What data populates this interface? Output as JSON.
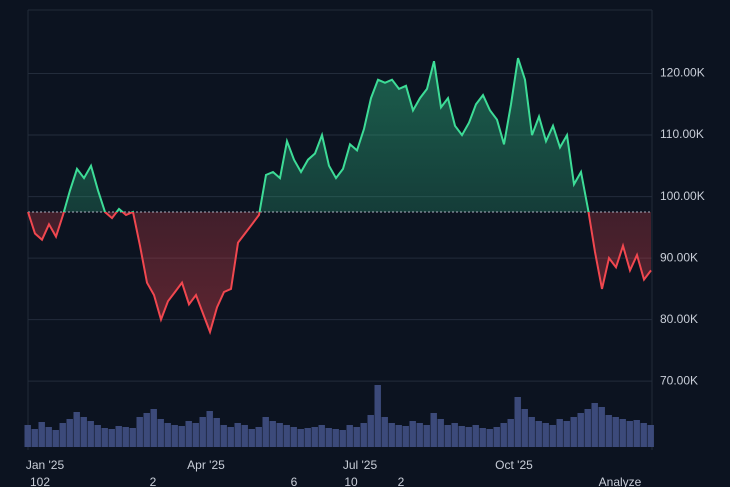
{
  "chart_data": {
    "type": "line",
    "categories": [
      null,
      null,
      "Jan '25",
      null,
      null,
      null,
      null,
      null,
      null,
      null,
      null,
      null,
      null,
      null,
      null,
      null,
      null,
      null,
      null,
      null,
      null,
      null,
      null,
      null,
      null,
      "Apr '25",
      null,
      null,
      null,
      null,
      null,
      null,
      null,
      null,
      null,
      null,
      null,
      null,
      null,
      null,
      null,
      null,
      null,
      null,
      null,
      null,
      null,
      "Jul '25",
      null,
      null,
      null,
      null,
      null,
      null,
      null,
      null,
      null,
      null,
      null,
      null,
      null,
      null,
      null,
      null,
      null,
      null,
      null,
      null,
      null,
      "Oct '25",
      null,
      null,
      null,
      null,
      null,
      null,
      null,
      null,
      null,
      null,
      null,
      null,
      null,
      null,
      null,
      null,
      null,
      null,
      null,
      null
    ],
    "series": [
      {
        "values": [
          97500,
          94000,
          93000,
          95500,
          93500,
          97000,
          101000,
          104500,
          103000,
          105000,
          101000,
          97500,
          96500,
          98000,
          97000,
          97500,
          92000,
          86000,
          84000,
          80000,
          83000,
          84500,
          86000,
          82500,
          84000,
          81000,
          78000,
          82000,
          84500,
          85000,
          92500,
          94000,
          95500,
          97000,
          103500,
          104000,
          103000,
          109000,
          106000,
          104000,
          106000,
          107000,
          110000,
          105000,
          103000,
          104500,
          108500,
          107500,
          111000,
          116000,
          119000,
          118500,
          119000,
          117500,
          118000,
          114000,
          116000,
          117500,
          122000,
          114500,
          116000,
          111500,
          110000,
          112000,
          115000,
          116500,
          114000,
          112500,
          108500,
          115000,
          122500,
          119000,
          110000,
          113000,
          109000,
          111500,
          108000,
          110000,
          102000,
          104000,
          98000,
          91000,
          85000,
          90000,
          88500,
          92000,
          88000,
          90500,
          86500,
          88000
        ],
        "up_color": "#3ddc97",
        "down_color": "#f0474f"
      },
      {
        "type": "bar",
        "color": "#3c4a7a",
        "values": [
          22,
          18,
          25,
          20,
          17,
          24,
          28,
          35,
          30,
          26,
          22,
          19,
          18,
          21,
          20,
          19,
          30,
          34,
          38,
          28,
          24,
          22,
          21,
          26,
          24,
          30,
          36,
          29,
          22,
          20,
          24,
          22,
          18,
          20,
          30,
          26,
          24,
          22,
          20,
          18,
          19,
          20,
          22,
          19,
          18,
          17,
          22,
          20,
          24,
          32,
          62,
          30,
          24,
          22,
          21,
          26,
          24,
          22,
          34,
          28,
          22,
          24,
          21,
          20,
          22,
          19,
          18,
          20,
          24,
          28,
          50,
          38,
          30,
          26,
          24,
          22,
          28,
          26,
          30,
          34,
          38,
          44,
          40,
          32,
          30,
          28,
          26,
          27,
          24,
          22
        ]
      }
    ],
    "baseline": 97500,
    "ylim": [
      59300,
      130000
    ],
    "yticks": [
      {
        "value": 70000,
        "label": "70.00K"
      },
      {
        "value": 80000,
        "label": "80.00K"
      },
      {
        "value": 90000,
        "label": "90.00K"
      },
      {
        "value": 100000,
        "label": "100.00K"
      },
      {
        "value": 110000,
        "label": "110.00K"
      },
      {
        "value": 120000,
        "label": "120.00K"
      }
    ],
    "grid": true,
    "footer_labels": [
      "102",
      "2",
      "6",
      "10",
      "2",
      "Analyze"
    ]
  }
}
